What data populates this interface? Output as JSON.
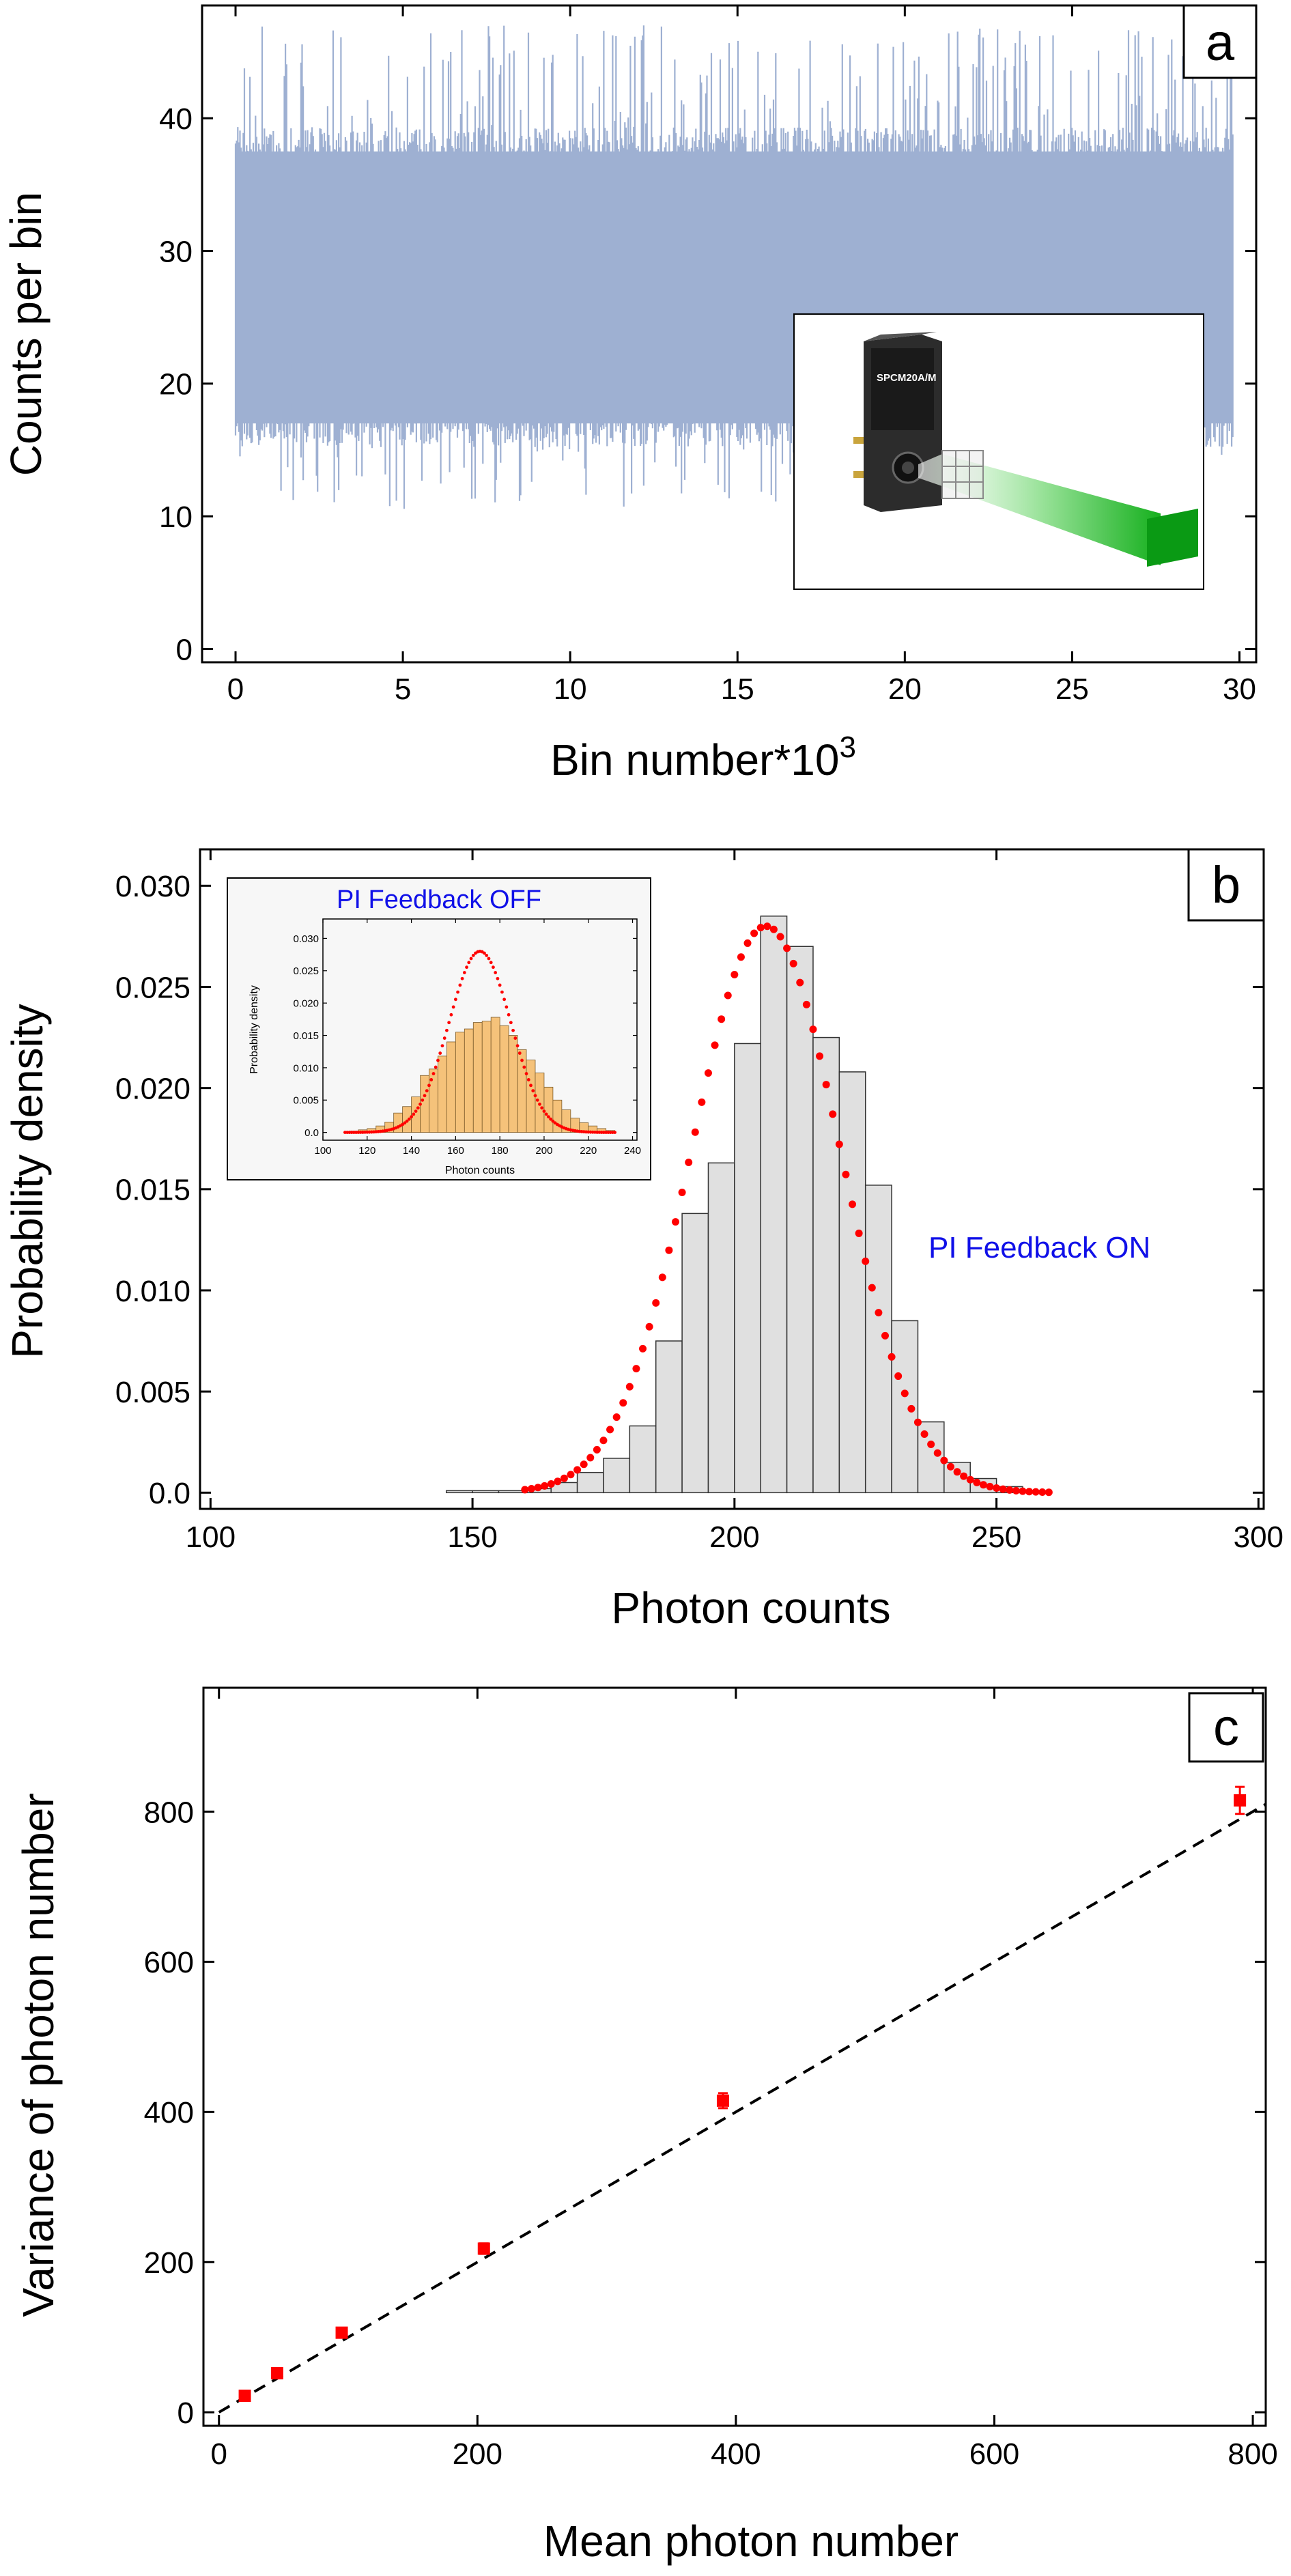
{
  "chart_data": [
    {
      "panel": "a",
      "type": "area",
      "xlabel_base": "Bin number*10",
      "xlabel_sup": "3",
      "ylabel": "Counts per bin",
      "xlim": [
        -1,
        30.5
      ],
      "ylim": [
        -1,
        48.5
      ],
      "xticks": [
        0,
        5,
        10,
        15,
        20,
        25,
        30
      ],
      "yticks": [
        0,
        10,
        20,
        30,
        40
      ],
      "fill_color": "#9eb0d2",
      "series": [
        {
          "mean": 27,
          "band_low": 17,
          "band_high": 37.5,
          "spike_min": 10.5,
          "spike_max": 47,
          "x_range": [
            0,
            29.8
          ]
        }
      ],
      "inset": {
        "description_icon": "spcm-detector-with-green-beam-icon",
        "device_label": "SPCM20A/M"
      }
    },
    {
      "panel": "b",
      "type": "bar",
      "xlabel": "Photon counts",
      "ylabel": "Probability density",
      "xlim": [
        98,
        301
      ],
      "ylim": [
        -0.0008,
        0.0318
      ],
      "xticks": [
        100,
        150,
        200,
        250,
        300
      ],
      "yticks": [
        "0.0",
        "0.005",
        "0.010",
        "0.015",
        "0.020",
        "0.025",
        "0.030"
      ],
      "bin_edges": [
        145,
        150,
        155,
        160,
        165,
        170,
        175,
        180,
        185,
        190,
        195,
        200,
        205,
        210,
        215,
        220,
        225,
        230,
        235,
        240,
        245,
        250,
        255,
        260
      ],
      "values": [
        0.0001,
        0.0001,
        0.0001,
        0.0002,
        0.0005,
        0.001,
        0.0017,
        0.0033,
        0.0075,
        0.0138,
        0.0163,
        0.0222,
        0.0285,
        0.027,
        0.0225,
        0.0208,
        0.0152,
        0.0085,
        0.0035,
        0.0015,
        0.0007,
        0.0003,
        0.0001
      ],
      "fit": {
        "mean": 206,
        "sd": 14.2,
        "peak": 0.028,
        "x_range": [
          160,
          260
        ],
        "color": "#ff0000"
      },
      "bar_color": "#e0e0e0",
      "series": [
        {
          "name": "PI Feedback ON"
        }
      ],
      "inset": {
        "title": "PI Feedback OFF",
        "xlabel": "Photon counts",
        "ylabel": "Probability density",
        "xlim": [
          100,
          242
        ],
        "ylim": [
          -0.0012,
          0.033
        ],
        "xticks": [
          100,
          120,
          140,
          160,
          180,
          200,
          220,
          240
        ],
        "yticks": [
          "0.0",
          "0.005",
          "0.010",
          "0.015",
          "0.020",
          "0.025",
          "0.030"
        ],
        "bin_edges": [
          112,
          116,
          120,
          124,
          128,
          132,
          136,
          140,
          144,
          148,
          152,
          156,
          160,
          164,
          168,
          172,
          176,
          180,
          184,
          188,
          192,
          196,
          200,
          204,
          208,
          212,
          216,
          220,
          224,
          228,
          232
        ],
        "values": [
          0.0002,
          0.0004,
          0.0006,
          0.001,
          0.0016,
          0.003,
          0.004,
          0.0055,
          0.0088,
          0.0098,
          0.0118,
          0.014,
          0.0155,
          0.016,
          0.017,
          0.0172,
          0.0178,
          0.0165,
          0.015,
          0.0128,
          0.0112,
          0.0092,
          0.007,
          0.005,
          0.0035,
          0.0022,
          0.0015,
          0.001,
          0.0006,
          0.0003
        ],
        "fit": {
          "mean": 171,
          "sd": 14,
          "peak": 0.028,
          "x_range": [
            110,
            232
          ]
        },
        "bar_color": "#f5c27a"
      }
    },
    {
      "panel": "c",
      "type": "scatter",
      "xlabel": "Mean photon number",
      "ylabel": "Variance of photon number",
      "xlim": [
        -12,
        810
      ],
      "ylim": [
        -18,
        965
      ],
      "xticks": [
        0,
        200,
        400,
        600,
        800
      ],
      "yticks": [
        0,
        200,
        400,
        600,
        800
      ],
      "points": [
        {
          "x": 20,
          "y": 22,
          "err": 6
        },
        {
          "x": 45,
          "y": 52,
          "err": 6
        },
        {
          "x": 95,
          "y": 106,
          "err": 6
        },
        {
          "x": 205,
          "y": 218,
          "err": 7
        },
        {
          "x": 390,
          "y": 415,
          "err": 10
        },
        {
          "x": 790,
          "y": 815,
          "err": 18
        }
      ],
      "reference_line": {
        "from": [
          0,
          0
        ],
        "to": [
          810,
          810
        ],
        "style": "dashed"
      },
      "point_color": "#ff0000"
    }
  ],
  "labels": {
    "a": "a",
    "b": "b",
    "c": "c"
  }
}
